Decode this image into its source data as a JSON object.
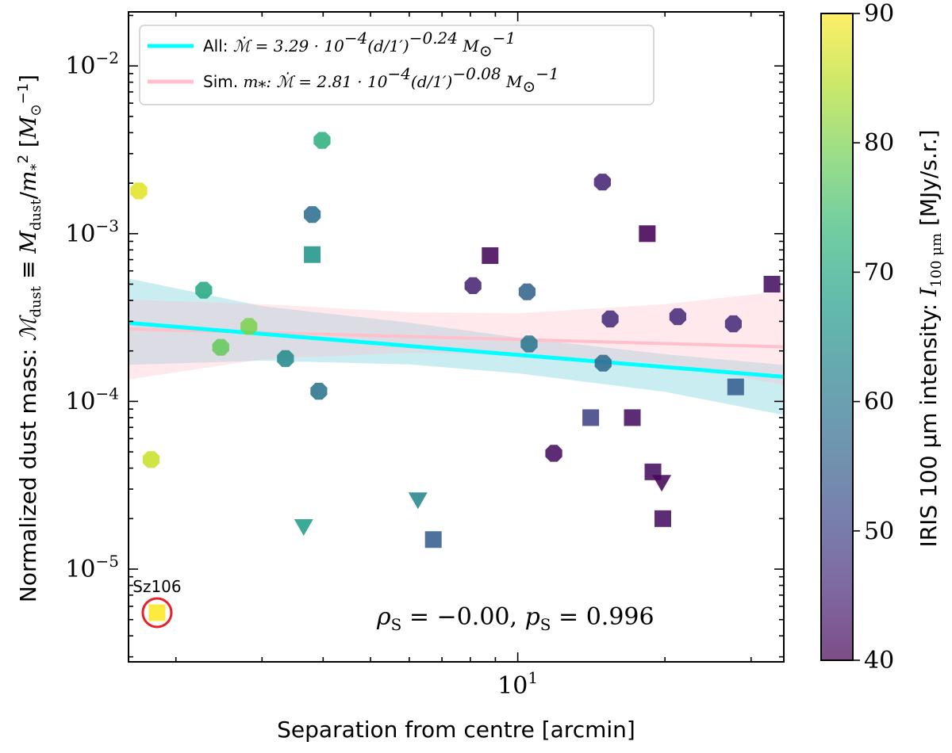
{
  "chart_data": {
    "type": "scatter",
    "xlabel": "Separation from centre [arcmin]",
    "ylabel": "Normalized dust mass: ℳdust ≡ Mdust/m*² [M⊙⁻¹]",
    "xscale": "log",
    "yscale": "log",
    "xlim": [
      1.6,
      35
    ],
    "ylim": [
      2.8e-06,
      0.021
    ],
    "x_ticks": [
      {
        "value": 10,
        "label": "10",
        "sup": "1"
      }
    ],
    "y_ticks": [
      {
        "value": 1e-05,
        "label": "10",
        "sup": "−5"
      },
      {
        "value": 0.0001,
        "label": "10",
        "sup": "−4"
      },
      {
        "value": 0.001,
        "label": "10",
        "sup": "−3"
      },
      {
        "value": 0.01,
        "label": "10",
        "sup": "−2"
      }
    ],
    "colorbar": {
      "label_prefix": "IRIS 100 μm intensity: ",
      "label_symbol": "I",
      "label_sub": "100 μm",
      "label_unit": " [MJy/s.r.]",
      "min": 40,
      "max": 90,
      "ticks": [
        {
          "value": 40,
          "label": "40"
        },
        {
          "value": 50,
          "label": "50"
        },
        {
          "value": 60,
          "label": "60"
        },
        {
          "value": 70,
          "label": "70"
        },
        {
          "value": 80,
          "label": "80"
        },
        {
          "value": 90,
          "label": "90"
        }
      ],
      "colormap": "viridis"
    },
    "points": [
      {
        "x": 1.68,
        "y": 0.0018,
        "c": 88,
        "marker": "hexagon"
      },
      {
        "x": 1.78,
        "y": 4.5e-05,
        "c": 86,
        "marker": "hexagon"
      },
      {
        "x": 1.83,
        "y": 5.5e-06,
        "c": 90,
        "marker": "square",
        "label": "Sz106"
      },
      {
        "x": 2.28,
        "y": 0.00046,
        "c": 70,
        "marker": "hexagon"
      },
      {
        "x": 2.47,
        "y": 0.00021,
        "c": 78,
        "marker": "hexagon"
      },
      {
        "x": 2.82,
        "y": 0.00028,
        "c": 80,
        "marker": "hexagon"
      },
      {
        "x": 3.35,
        "y": 0.00018,
        "c": 64,
        "marker": "hexagon"
      },
      {
        "x": 3.65,
        "y": 1.8e-05,
        "c": 68,
        "marker": "triangle-down"
      },
      {
        "x": 3.8,
        "y": 0.0013,
        "c": 58,
        "marker": "hexagon"
      },
      {
        "x": 3.8,
        "y": 0.00075,
        "c": 66,
        "marker": "square"
      },
      {
        "x": 3.92,
        "y": 0.000115,
        "c": 59,
        "marker": "hexagon"
      },
      {
        "x": 3.98,
        "y": 0.0036,
        "c": 72,
        "marker": "hexagon"
      },
      {
        "x": 6.25,
        "y": 2.6e-05,
        "c": 63,
        "marker": "triangle-down"
      },
      {
        "x": 6.72,
        "y": 1.5e-05,
        "c": 55,
        "marker": "square"
      },
      {
        "x": 8.1,
        "y": 0.00049,
        "c": 45,
        "marker": "hexagon"
      },
      {
        "x": 8.78,
        "y": 0.00074,
        "c": 41,
        "marker": "square"
      },
      {
        "x": 10.45,
        "y": 0.00045,
        "c": 56,
        "marker": "hexagon"
      },
      {
        "x": 10.55,
        "y": 0.00022,
        "c": 60,
        "marker": "hexagon"
      },
      {
        "x": 11.85,
        "y": 4.9e-05,
        "c": 42,
        "marker": "hexagon"
      },
      {
        "x": 14.1,
        "y": 8e-05,
        "c": 50,
        "marker": "square"
      },
      {
        "x": 14.9,
        "y": 0.00203,
        "c": 45,
        "marker": "hexagon"
      },
      {
        "x": 14.95,
        "y": 0.000169,
        "c": 57,
        "marker": "hexagon"
      },
      {
        "x": 15.45,
        "y": 0.00031,
        "c": 46,
        "marker": "hexagon"
      },
      {
        "x": 17.15,
        "y": 8e-05,
        "c": 42,
        "marker": "square"
      },
      {
        "x": 18.4,
        "y": 0.001,
        "c": 40,
        "marker": "square"
      },
      {
        "x": 18.9,
        "y": 3.8e-05,
        "c": 42,
        "marker": "square"
      },
      {
        "x": 19.7,
        "y": 3.3e-05,
        "c": 41,
        "marker": "triangle-down"
      },
      {
        "x": 19.8,
        "y": 2e-05,
        "c": 42,
        "marker": "square"
      },
      {
        "x": 21.25,
        "y": 0.00032,
        "c": 46,
        "marker": "hexagon"
      },
      {
        "x": 27.6,
        "y": 0.00029,
        "c": 46,
        "marker": "hexagon"
      },
      {
        "x": 27.9,
        "y": 0.000122,
        "c": 55,
        "marker": "square"
      },
      {
        "x": 33.1,
        "y": 0.0005,
        "c": 42,
        "marker": "square"
      }
    ],
    "fits": [
      {
        "name": "All",
        "color": "#00ffff",
        "band_color": "#8ad8e2",
        "coef": 3.29,
        "exp": -0.24,
        "legend_prefix": "All: ",
        "legend_eq": "ℳ̇ = 3.29 · 10⁻⁴(d/1′)⁻⁰·²⁴ M⊙⁻¹",
        "band_x": [
          1.6,
          3,
          6,
          10,
          20,
          35
        ],
        "band_low": [
          0.000165,
          0.000175,
          0.000166,
          0.000147,
          0.000114,
          8.3e-05
        ],
        "band_high": [
          0.00054,
          0.00037,
          0.000295,
          0.00024,
          0.000191,
          0.000165
        ]
      },
      {
        "name": "Sim. m*",
        "color": "#ffc0cb",
        "band_color": "#ffc0cb",
        "coef": 2.81,
        "exp": -0.08,
        "legend_prefix": "Sim. ",
        "legend_eq": "m*: ℳ̇ = 2.81 · 10⁻⁴(d/1′)⁻⁰·⁰⁸ M⊙⁻¹",
        "band_x": [
          1.6,
          3,
          6,
          10,
          20,
          35
        ],
        "band_low": [
          0.000135,
          0.000178,
          0.000195,
          0.00019,
          0.000168,
          0.000125
        ],
        "band_high": [
          0.000405,
          0.00038,
          0.00034,
          0.000335,
          0.00038,
          0.000455
        ]
      }
    ],
    "annotation": "ρS = −0.00, pS = 0.996",
    "highlight": {
      "label": "Sz106",
      "ring_color": "#e8202a"
    }
  }
}
